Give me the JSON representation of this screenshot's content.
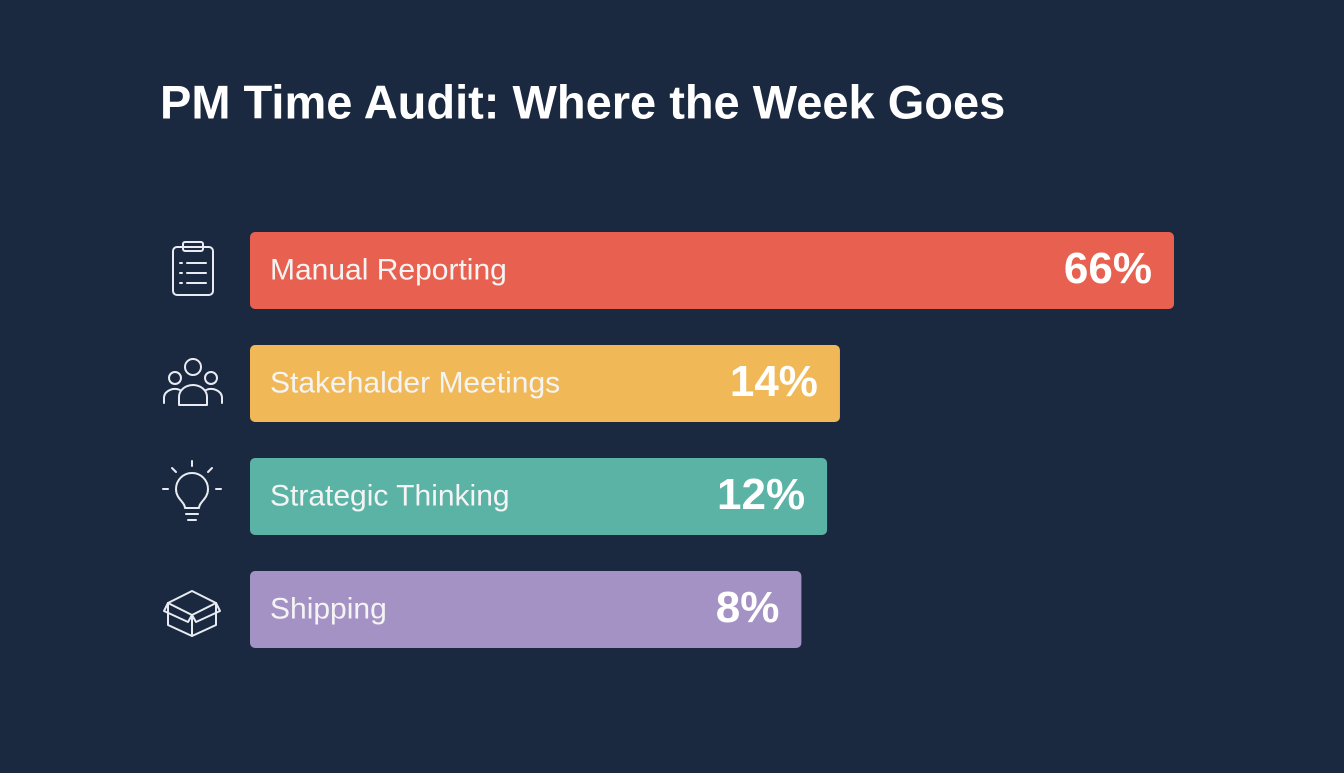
{
  "chart_data": {
    "type": "hbar",
    "title": "PM Time Audit: Where the Week Goes",
    "categories": [
      "Manual Reporting",
      "Stakehalder Meetings",
      "Strategic Thinking",
      "Shipping"
    ],
    "values": [
      66,
      14,
      12,
      8
    ],
    "value_labels": [
      "66%",
      "14%",
      "12%",
      "8%"
    ],
    "colors": [
      "#e8604f",
      "#f0b856",
      "#5bb3a5",
      "#a492c4"
    ]
  }
}
